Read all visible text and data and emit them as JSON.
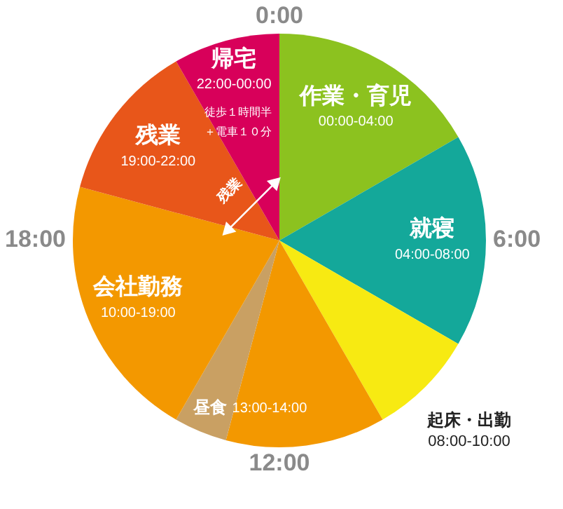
{
  "chart_data": {
    "type": "pie",
    "categories": [
      "作業・育児",
      "就寝",
      "起床・出勤",
      null,
      "昼食",
      "会社勤務",
      "残業",
      "帰宅"
    ],
    "values": [
      16.67,
      16.67,
      8.33,
      12.5,
      4.17,
      20.83,
      12.5,
      8.33
    ],
    "colors": [
      "#8cc21f",
      "#14a89a",
      "#f7ea12",
      "#f39800",
      "#c9a063",
      "#f39800",
      "#e8561a",
      "#d8005a"
    ],
    "value_labels": [
      "00:00-04:00",
      "04:00-08:00",
      "08:00-10:00",
      null,
      "13:00-14:00",
      "10:00-19:00",
      "19:00-22:00",
      "22:00-00:00"
    ],
    "annotations": [
      "0:00",
      "6:00",
      "12:00",
      "18:00",
      "徒歩１時間半",
      "＋電車１０分",
      "残業"
    ]
  }
}
